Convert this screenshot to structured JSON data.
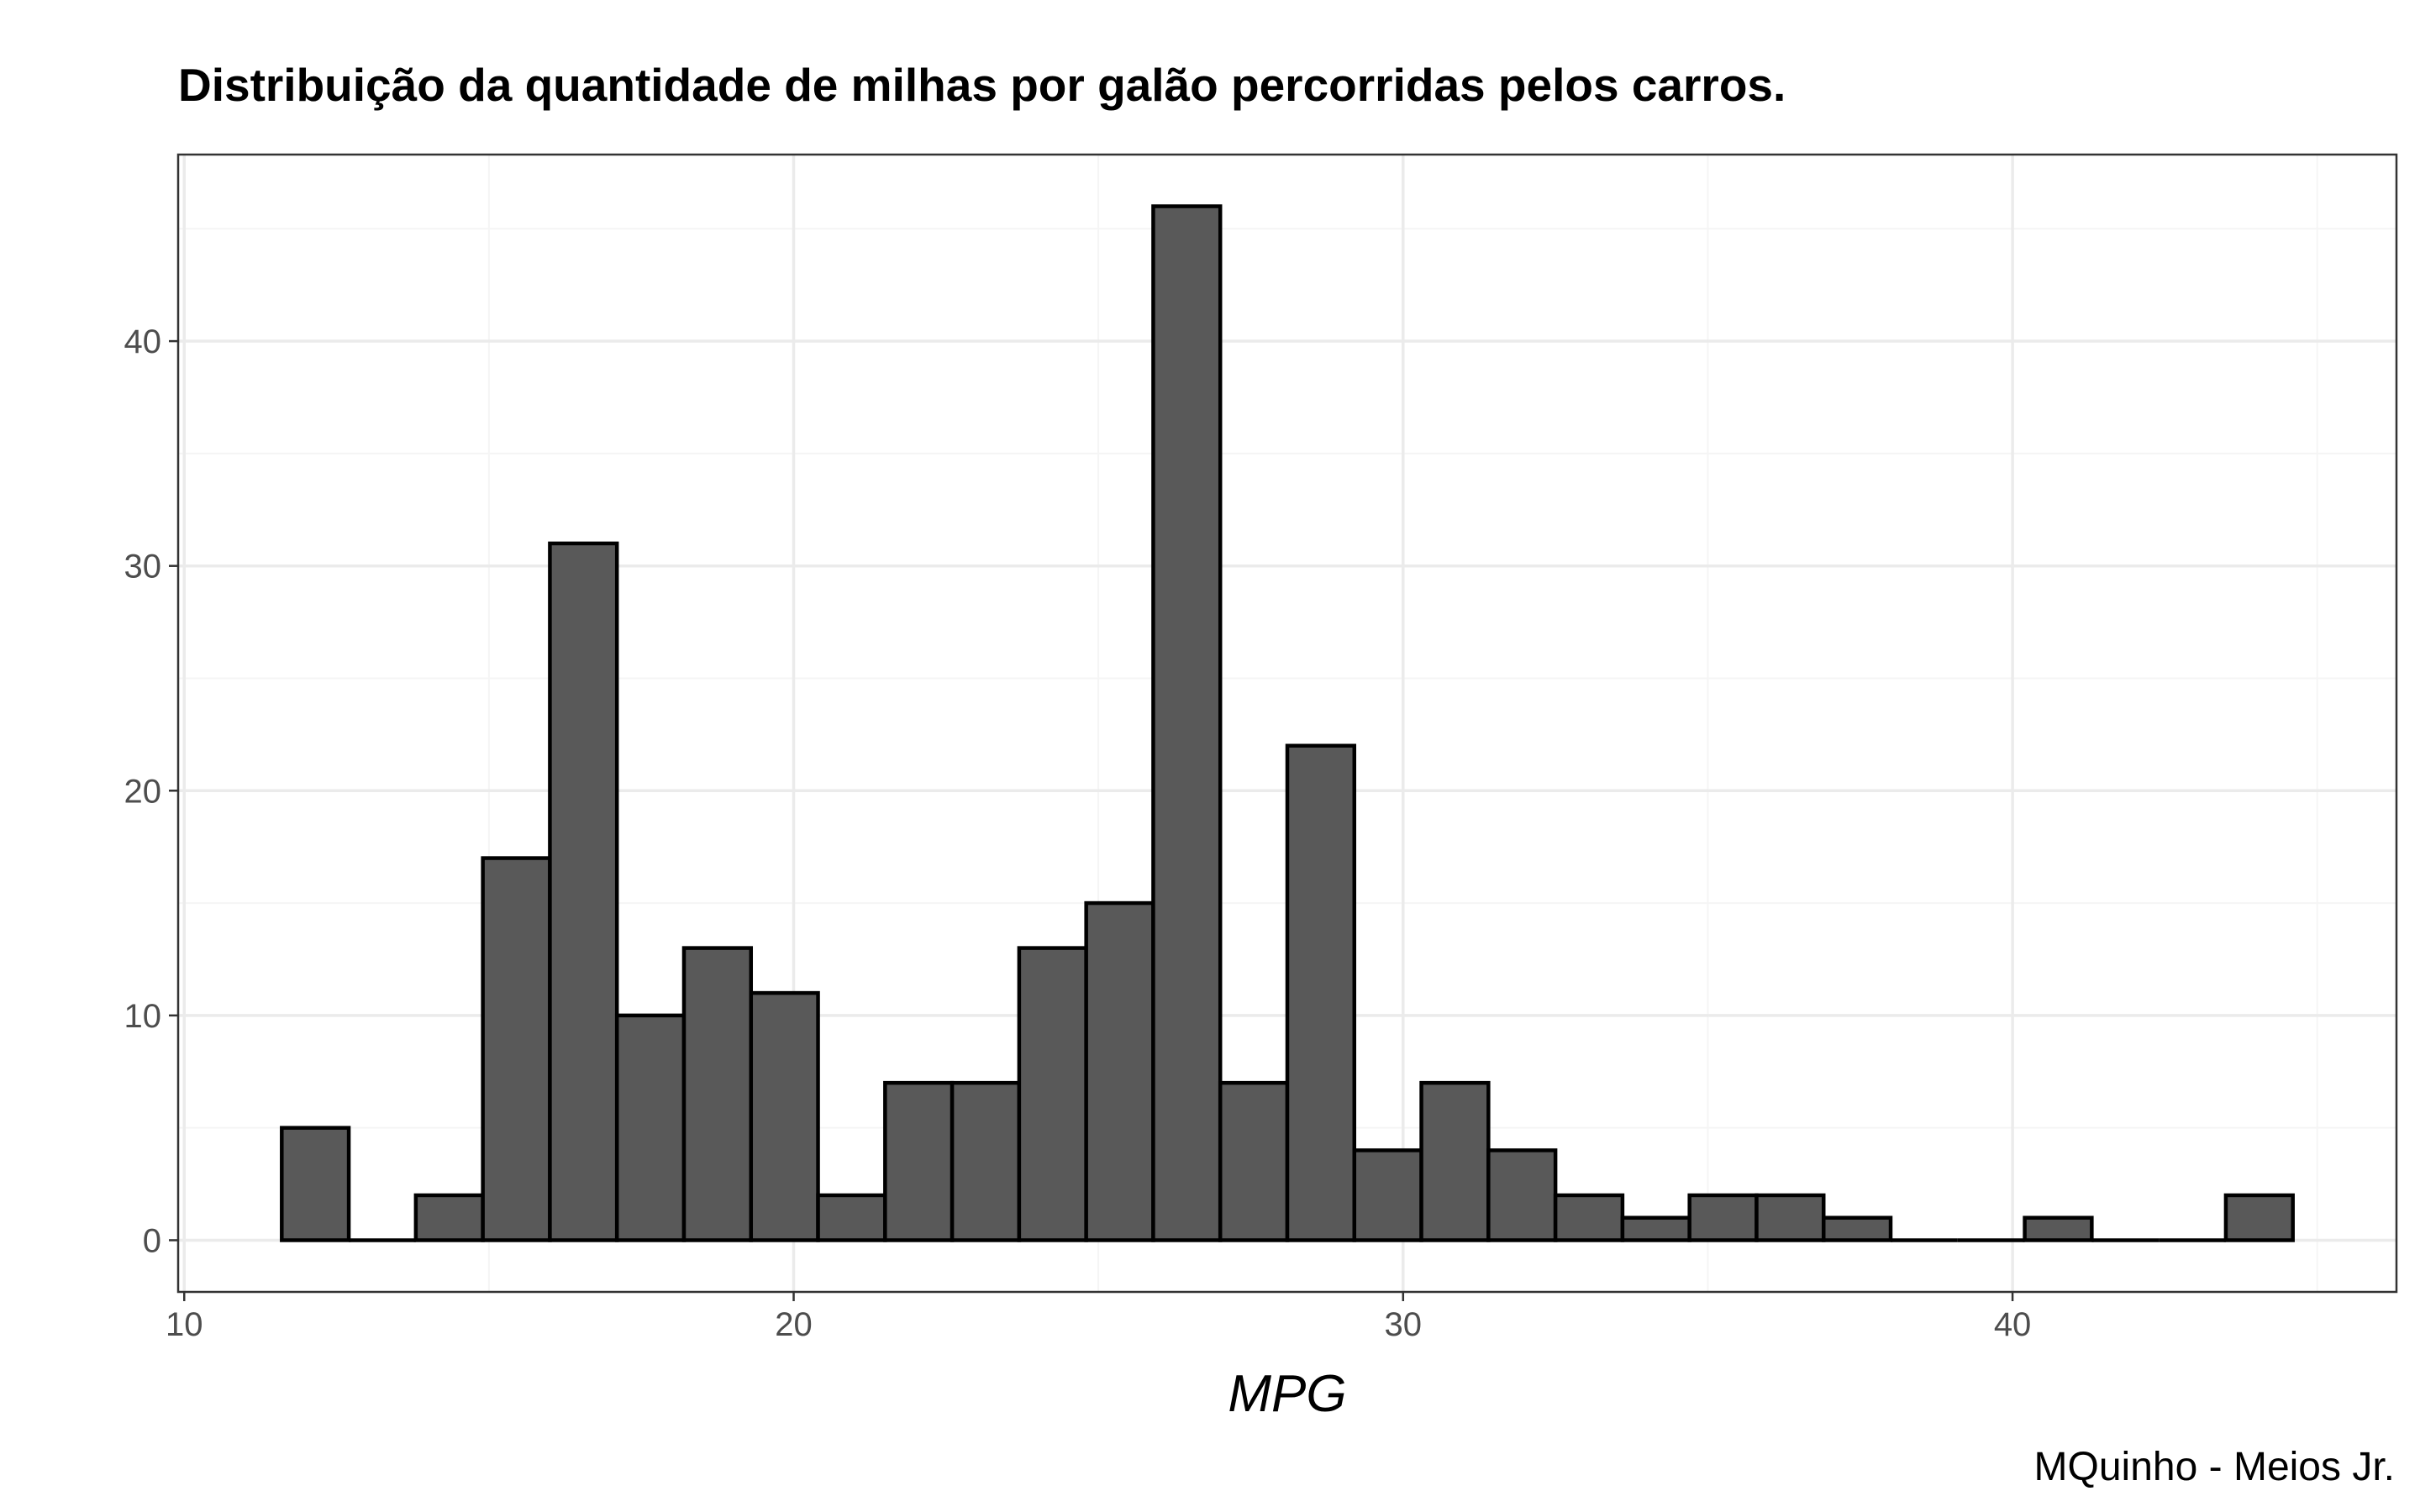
{
  "chart_data": {
    "type": "bar",
    "subtype": "histogram",
    "title": "Distribuição da quantidade de milhas por galão percorridas pelos carros.",
    "xlabel": "MPG",
    "ylabel": "",
    "caption": "MQuinho - Meios Jr.",
    "x_ticks": [
      10,
      20,
      30,
      40
    ],
    "y_ticks": [
      0,
      10,
      20,
      30,
      40
    ],
    "xlim": [
      9.9,
      46.3
    ],
    "ylim": [
      -2.3,
      48.3
    ],
    "grid": true,
    "bin_width": 1.1,
    "bin_start": 11.6,
    "bin_centers": [
      12.15,
      13.25,
      14.35,
      15.45,
      16.55,
      17.65,
      18.75,
      19.85,
      20.95,
      22.05,
      23.15,
      24.25,
      25.35,
      26.45,
      27.55,
      28.65,
      29.75,
      30.85,
      31.95,
      33.05,
      34.15,
      35.25,
      36.35,
      37.45,
      38.55,
      39.65,
      40.75,
      41.85,
      42.95,
      44.05
    ],
    "values": [
      5,
      0,
      2,
      17,
      31,
      10,
      13,
      11,
      2,
      7,
      7,
      13,
      15,
      46,
      7,
      22,
      4,
      7,
      4,
      2,
      1,
      2,
      2,
      1,
      0,
      0,
      1,
      0,
      0,
      2
    ],
    "colors": {
      "bar_fill": "#595959",
      "bar_stroke": "#000000",
      "grid_major": "#ebebeb",
      "grid_minor": "#f5f5f5",
      "panel_border": "#333333",
      "tick_text": "#4d4d4d"
    }
  }
}
